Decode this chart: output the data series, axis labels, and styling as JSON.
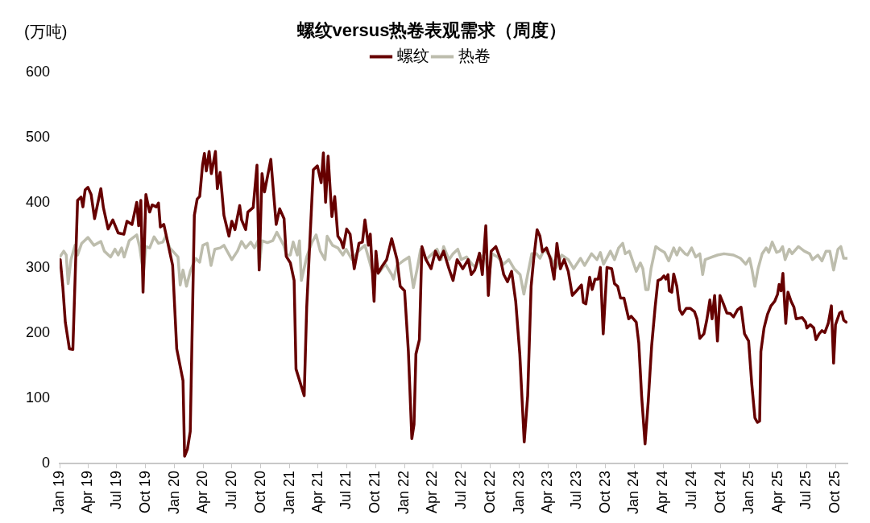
{
  "chart_data": {
    "type": "line",
    "title": "螺纹versus热卷表观需求（周度）",
    "ylabel": "(万吨)",
    "legend": "top",
    "grid": false,
    "marker": "none",
    "line_style": "solid",
    "xlim": [
      "2019-01-01",
      "2025-11-08"
    ],
    "xticks": [
      {
        "value": "2019-01",
        "label": "Jan 19"
      },
      {
        "value": "2019-04",
        "label": "Apr 19"
      },
      {
        "value": "2019-07",
        "label": "Jul 19"
      },
      {
        "value": "2019-10",
        "label": "Oct 19"
      },
      {
        "value": "2020-01",
        "label": "Jan 20"
      },
      {
        "value": "2020-04",
        "label": "Apr 20"
      },
      {
        "value": "2020-07",
        "label": "Jul 20"
      },
      {
        "value": "2020-10",
        "label": "Oct 20"
      },
      {
        "value": "2021-01",
        "label": "Jan 21"
      },
      {
        "value": "2021-04",
        "label": "Apr 21"
      },
      {
        "value": "2021-07",
        "label": "Jul 21"
      },
      {
        "value": "2021-10",
        "label": "Oct 21"
      },
      {
        "value": "2022-01",
        "label": "Jan 22"
      },
      {
        "value": "2022-04",
        "label": "Apr 22"
      },
      {
        "value": "2022-07",
        "label": "Jul 22"
      },
      {
        "value": "2022-10",
        "label": "Oct 22"
      },
      {
        "value": "2023-01",
        "label": "Jan 23"
      },
      {
        "value": "2023-04",
        "label": "Apr 23"
      },
      {
        "value": "2023-07",
        "label": "Jul 23"
      },
      {
        "value": "2023-10",
        "label": "Oct 23"
      },
      {
        "value": "2024-01",
        "label": "Jan 24"
      },
      {
        "value": "2024-04",
        "label": "Apr 24"
      },
      {
        "value": "2024-07",
        "label": "Jul 24"
      },
      {
        "value": "2024-10",
        "label": "Oct 24"
      },
      {
        "value": "2025-01",
        "label": "Jan 25"
      },
      {
        "value": "2025-04",
        "label": "Apr 25"
      },
      {
        "value": "2025-07",
        "label": "Jul 25"
      },
      {
        "value": "2025-10",
        "label": "Oct 25"
      }
    ],
    "ylim": [
      0,
      600
    ],
    "yticks": [
      0,
      100,
      200,
      300,
      400,
      500,
      600
    ],
    "series": [
      {
        "name": "螺纹",
        "color": "#660000",
        "x": [
          "2019-01-03",
          "2019-01-11",
          "2019-01-19",
          "2019-02-01",
          "2019-02-12",
          "2019-02-27",
          "2019-03-10",
          "2019-03-16",
          "2019-03-23",
          "2019-04-01",
          "2019-04-11",
          "2019-04-22",
          "2019-05-12",
          "2019-05-20",
          "2019-06-04",
          "2019-06-19",
          "2019-07-06",
          "2019-07-24",
          "2019-08-03",
          "2019-08-19",
          "2019-09-03",
          "2019-09-09",
          "2019-09-16",
          "2019-09-23",
          "2019-10-02",
          "2019-10-14",
          "2019-10-22",
          "2019-11-04",
          "2019-11-11",
          "2019-11-17",
          "2019-11-28",
          "2019-12-08",
          "2019-12-26",
          "2020-01-08",
          "2020-01-28",
          "2020-02-02",
          "2020-02-11",
          "2020-02-20",
          "2020-03-04",
          "2020-03-13",
          "2020-03-21",
          "2020-03-30",
          "2020-04-05",
          "2020-04-11",
          "2020-04-20",
          "2020-04-27",
          "2020-05-10",
          "2020-05-16",
          "2020-05-25",
          "2020-06-06",
          "2020-06-22",
          "2020-07-01",
          "2020-07-11",
          "2020-07-26",
          "2020-08-01",
          "2020-08-14",
          "2020-08-21",
          "2020-09-07",
          "2020-09-19",
          "2020-09-26",
          "2020-10-05",
          "2020-10-13",
          "2020-11-02",
          "2020-11-19",
          "2020-11-30",
          "2020-12-14",
          "2020-12-21",
          "2021-01-03",
          "2021-01-15",
          "2021-01-21",
          "2021-02-16",
          "2021-02-24",
          "2021-03-17",
          "2021-03-30",
          "2021-04-11",
          "2021-04-18",
          "2021-04-25",
          "2021-05-03",
          "2021-05-15",
          "2021-05-24",
          "2021-06-03",
          "2021-06-13",
          "2021-06-20",
          "2021-07-01",
          "2021-07-12",
          "2021-07-25",
          "2021-08-09",
          "2021-08-20",
          "2021-08-28",
          "2021-09-08",
          "2021-09-14",
          "2021-09-26",
          "2021-10-02",
          "2021-10-09",
          "2021-10-23",
          "2021-11-05",
          "2021-11-21",
          "2021-12-08",
          "2021-12-18",
          "2022-01-01",
          "2022-01-13",
          "2022-01-24",
          "2022-01-31",
          "2022-02-06",
          "2022-02-17",
          "2022-02-25",
          "2022-03-10",
          "2022-03-26",
          "2022-04-09",
          "2022-04-22",
          "2022-05-05",
          "2022-05-22",
          "2022-06-04",
          "2022-06-17",
          "2022-07-05",
          "2022-07-22",
          "2022-08-01",
          "2022-08-12",
          "2022-08-27",
          "2022-09-05",
          "2022-09-16",
          "2022-09-24",
          "2022-10-03",
          "2022-10-18",
          "2022-11-02",
          "2022-11-12",
          "2022-11-24",
          "2022-12-07",
          "2022-12-20",
          "2023-01-02",
          "2023-01-16",
          "2023-01-27",
          "2023-02-07",
          "2023-02-15",
          "2023-02-26",
          "2023-03-07",
          "2023-03-15",
          "2023-03-28",
          "2023-04-10",
          "2023-04-21",
          "2023-04-30",
          "2023-05-11",
          "2023-05-23",
          "2023-06-05",
          "2023-06-18",
          "2023-07-01",
          "2023-07-17",
          "2023-07-23",
          "2023-07-31",
          "2023-08-12",
          "2023-08-20",
          "2023-08-29",
          "2023-09-08",
          "2023-09-15",
          "2023-09-24",
          "2023-10-06",
          "2023-10-21",
          "2023-10-30",
          "2023-11-09",
          "2023-11-18",
          "2023-11-29",
          "2023-12-14",
          "2023-12-22",
          "2024-01-07",
          "2024-01-15",
          "2024-01-24",
          "2024-02-04",
          "2024-02-14",
          "2024-02-25",
          "2024-03-07",
          "2024-03-16",
          "2024-03-26",
          "2024-04-04",
          "2024-04-10",
          "2024-04-17",
          "2024-04-21",
          "2024-04-29",
          "2024-05-05",
          "2024-05-15",
          "2024-05-24",
          "2024-06-01",
          "2024-06-14",
          "2024-06-27",
          "2024-07-10",
          "2024-07-18",
          "2024-07-27",
          "2024-08-09",
          "2024-08-18",
          "2024-08-28",
          "2024-09-04",
          "2024-09-12",
          "2024-09-21",
          "2024-09-29",
          "2024-10-10",
          "2024-10-21",
          "2024-11-01",
          "2024-11-11",
          "2024-11-24",
          "2024-12-05",
          "2024-12-16",
          "2024-12-29",
          "2025-01-08",
          "2025-01-18",
          "2025-01-26",
          "2025-02-02",
          "2025-02-06",
          "2025-02-16",
          "2025-02-27",
          "2025-03-10",
          "2025-03-22",
          "2025-03-31",
          "2025-04-05",
          "2025-04-11",
          "2025-04-17",
          "2025-04-26",
          "2025-05-03",
          "2025-05-13",
          "2025-05-22",
          "2025-05-29",
          "2025-06-17",
          "2025-06-28",
          "2025-07-02",
          "2025-07-13",
          "2025-07-24",
          "2025-07-31",
          "2025-08-10",
          "2025-08-19",
          "2025-08-28",
          "2025-09-08",
          "2025-09-18",
          "2025-09-25",
          "2025-10-01",
          "2025-10-14",
          "2025-10-21",
          "2025-10-27",
          "2025-11-04"
        ],
        "values": [
          313,
          272,
          217,
          176,
          175,
          404,
          409,
          394,
          420,
          424,
          413,
          376,
          422,
          393,
          360,
          374,
          354,
          352,
          372,
          367,
          401,
          365,
          404,
          263,
          413,
          386,
          397,
          394,
          400,
          363,
          367,
          345,
          304,
          176,
          127,
          11,
          22,
          49,
          381,
          406,
          410,
          458,
          476,
          449,
          479,
          445,
          479,
          422,
          447,
          381,
          349,
          372,
          359,
          396,
          374,
          359,
          386,
          393,
          458,
          297,
          445,
          417,
          467,
          367,
          391,
          376,
          318,
          308,
          281,
          145,
          104,
          240,
          451,
          457,
          431,
          477,
          401,
          472,
          379,
          410,
          349,
          342,
          331,
          360,
          352,
          299,
          338,
          340,
          374,
          335,
          352,
          249,
          326,
          292,
          304,
          313,
          345,
          313,
          272,
          265,
          172,
          38,
          60,
          168,
          190,
          333,
          313,
          299,
          326,
          313,
          326,
          299,
          281,
          313,
          299,
          313,
          290,
          297,
          323,
          290,
          365,
          258,
          326,
          333,
          313,
          290,
          279,
          295,
          249,
          168,
          33,
          104,
          272,
          313,
          359,
          349,
          325,
          331,
          313,
          283,
          338,
          299,
          313,
          295,
          258,
          265,
          274,
          247,
          245,
          286,
          267,
          283,
          283,
          301,
          199,
          301,
          299,
          276,
          272,
          254,
          254,
          222,
          226,
          217,
          185,
          104,
          30,
          95,
          181,
          240,
          281,
          283,
          288,
          283,
          290,
          265,
          263,
          291,
          272,
          236,
          229,
          238,
          238,
          233,
          222,
          192,
          199,
          220,
          251,
          222,
          258,
          188,
          258,
          245,
          231,
          230,
          225,
          236,
          240,
          199,
          188,
          122,
          70,
          63,
          65,
          172,
          208,
          229,
          242,
          249,
          260,
          275,
          265,
          292,
          215,
          263,
          249,
          240,
          222,
          224,
          217,
          208,
          213,
          208,
          190,
          199,
          204,
          201,
          215,
          242,
          154,
          213,
          231,
          233,
          220,
          217
        ]
      },
      {
        "name": "热卷",
        "color": "#bdbdad",
        "x": [
          "2019-01-03",
          "2019-01-14",
          "2019-01-22",
          "2019-01-28",
          "2019-02-06",
          "2019-02-19",
          "2019-02-27",
          "2019-03-12",
          "2019-04-01",
          "2019-04-20",
          "2019-05-12",
          "2019-05-23",
          "2019-06-12",
          "2019-06-26",
          "2019-07-06",
          "2019-07-17",
          "2019-07-25",
          "2019-08-10",
          "2019-08-23",
          "2019-09-03",
          "2019-09-12",
          "2019-09-24",
          "2019-10-02",
          "2019-10-14",
          "2019-10-28",
          "2019-11-11",
          "2019-11-25",
          "2019-12-04",
          "2019-12-17",
          "2020-01-03",
          "2020-01-12",
          "2020-01-19",
          "2020-01-28",
          "2020-02-08",
          "2020-02-20",
          "2020-03-08",
          "2020-03-21",
          "2020-03-31",
          "2020-04-14",
          "2020-04-26",
          "2020-05-08",
          "2020-05-25",
          "2020-06-06",
          "2020-07-01",
          "2020-07-19",
          "2020-08-01",
          "2020-08-14",
          "2020-08-30",
          "2020-09-11",
          "2020-09-22",
          "2020-09-26",
          "2020-10-05",
          "2020-10-22",
          "2020-11-08",
          "2020-11-21",
          "2020-12-13",
          "2020-12-21",
          "2021-01-03",
          "2021-01-12",
          "2021-01-25",
          "2021-02-01",
          "2021-02-07",
          "2021-02-24",
          "2021-03-13",
          "2021-03-26",
          "2021-04-08",
          "2021-04-23",
          "2021-04-30",
          "2021-05-17",
          "2021-06-03",
          "2021-06-19",
          "2021-06-29",
          "2021-07-18",
          "2021-08-07",
          "2021-08-28",
          "2021-09-10",
          "2021-09-23",
          "2021-10-02",
          "2021-10-15",
          "2021-11-01",
          "2021-11-21",
          "2021-11-27",
          "2021-12-08",
          "2021-12-27",
          "2022-01-15",
          "2022-01-29",
          "2022-02-10",
          "2022-02-21",
          "2022-03-10",
          "2022-03-30",
          "2022-04-14",
          "2022-04-27",
          "2022-05-05",
          "2022-05-22",
          "2022-06-04",
          "2022-06-19",
          "2022-06-30",
          "2022-07-17",
          "2022-08-03",
          "2022-08-16",
          "2022-08-29",
          "2022-09-16",
          "2022-09-26",
          "2022-10-06",
          "2022-10-24",
          "2022-11-11",
          "2022-11-28",
          "2022-12-15",
          "2023-01-03",
          "2023-01-15",
          "2023-01-27",
          "2023-02-09",
          "2023-02-24",
          "2023-03-07",
          "2023-03-21",
          "2023-04-10",
          "2023-04-28",
          "2023-05-15",
          "2023-06-05",
          "2023-06-22",
          "2023-07-14",
          "2023-07-27",
          "2023-08-18",
          "2023-09-04",
          "2023-09-15",
          "2023-09-25",
          "2023-10-17",
          "2023-10-30",
          "2023-11-12",
          "2023-11-25",
          "2023-12-03",
          "2023-12-16",
          "2024-01-07",
          "2024-01-20",
          "2024-01-28",
          "2024-02-06",
          "2024-02-14",
          "2024-02-23",
          "2024-03-09",
          "2024-03-20",
          "2024-04-06",
          "2024-04-19",
          "2024-05-05",
          "2024-05-15",
          "2024-05-24",
          "2024-06-10",
          "2024-06-18",
          "2024-07-01",
          "2024-07-14",
          "2024-07-27",
          "2024-08-05",
          "2024-08-13",
          "2024-09-04",
          "2024-09-21",
          "2024-10-12",
          "2024-11-11",
          "2024-12-03",
          "2024-12-20",
          "2025-01-01",
          "2025-01-09",
          "2025-01-18",
          "2025-01-28",
          "2025-02-10",
          "2025-02-23",
          "2025-03-03",
          "2025-03-14",
          "2025-03-28",
          "2025-04-07",
          "2025-04-16",
          "2025-04-24",
          "2025-05-07",
          "2025-05-16",
          "2025-06-05",
          "2025-06-24",
          "2025-07-11",
          "2025-07-20",
          "2025-08-06",
          "2025-08-19",
          "2025-09-01",
          "2025-09-13",
          "2025-09-25",
          "2025-10-09",
          "2025-10-18",
          "2025-10-27",
          "2025-11-07"
        ],
        "values": [
          318,
          326,
          320,
          276,
          313,
          335,
          320,
          338,
          347,
          335,
          341,
          326,
          317,
          329,
          320,
          331,
          317,
          342,
          347,
          351,
          333,
          292,
          333,
          331,
          348,
          338,
          340,
          349,
          331,
          322,
          317,
          274,
          297,
          272,
          295,
          315,
          309,
          335,
          338,
          304,
          329,
          331,
          335,
          313,
          326,
          341,
          331,
          340,
          331,
          342,
          301,
          342,
          339,
          342,
          355,
          335,
          320,
          320,
          340,
          320,
          342,
          281,
          317,
          340,
          351,
          326,
          313,
          349,
          335,
          331,
          320,
          329,
          313,
          326,
          335,
          313,
          290,
          301,
          295,
          306,
          290,
          283,
          304,
          311,
          317,
          270,
          299,
          329,
          313,
          322,
          329,
          313,
          333,
          313,
          322,
          329,
          313,
          317,
          306,
          301,
          320,
          313,
          286,
          322,
          317,
          306,
          313,
          299,
          290,
          260,
          290,
          322,
          322,
          315,
          329,
          317,
          301,
          320,
          313,
          299,
          315,
          304,
          322,
          313,
          324,
          306,
          326,
          313,
          331,
          338,
          322,
          326,
          295,
          308,
          299,
          267,
          267,
          299,
          333,
          329,
          324,
          311,
          331,
          320,
          331,
          322,
          320,
          331,
          317,
          322,
          290,
          313,
          317,
          320,
          322,
          320,
          315,
          306,
          315,
          297,
          272,
          299,
          322,
          331,
          324,
          340,
          324,
          326,
          333,
          313,
          329,
          322,
          333,
          326,
          322,
          313,
          320,
          311,
          326,
          326,
          297,
          329,
          333,
          315,
          315
        ]
      }
    ]
  }
}
